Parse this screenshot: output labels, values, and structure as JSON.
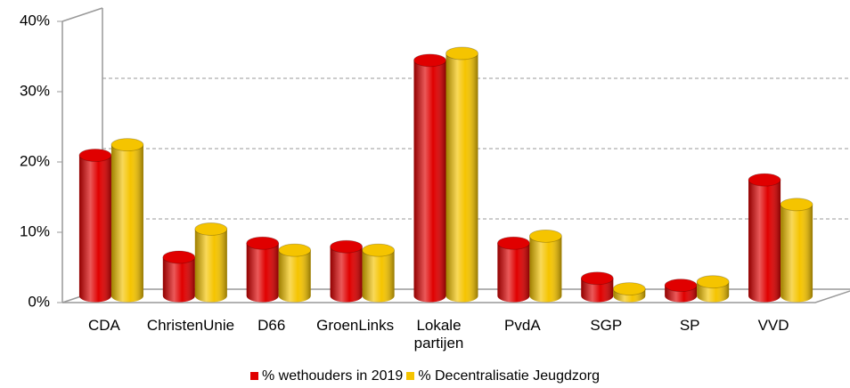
{
  "chart_data": {
    "type": "bar3d",
    "categories": [
      "CDA",
      "ChristenUnie",
      "D66",
      "GroenLinks",
      "Lokale partijen",
      "PvdA",
      "SGP",
      "SP",
      "VVD"
    ],
    "series": [
      {
        "name": "% wethouders in 2019",
        "color": "#e00000",
        "values": [
          20,
          5.5,
          7.5,
          7,
          33.5,
          7.5,
          2.5,
          1.5,
          16.5
        ]
      },
      {
        "name": "% Decentralisatie Jeugdzorg",
        "color": "#f5c400",
        "values": [
          21.5,
          9.5,
          6.5,
          6.5,
          34.5,
          8.5,
          1,
          2,
          13
        ]
      }
    ],
    "ylim": [
      0,
      40
    ],
    "yticks": [
      {
        "value": 0,
        "label": "0%"
      },
      {
        "value": 10,
        "label": "10%"
      },
      {
        "value": 20,
        "label": "20%"
      },
      {
        "value": 30,
        "label": "30%"
      },
      {
        "value": 40,
        "label": "40%"
      }
    ],
    "grid": true,
    "legend": "bottom"
  }
}
